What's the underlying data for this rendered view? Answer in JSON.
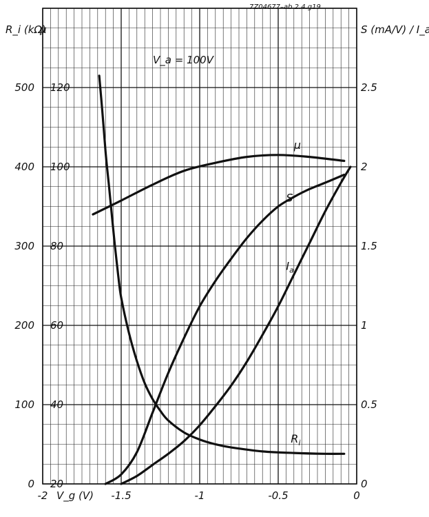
{
  "chart_data": {
    "type": "line",
    "catalog_ref": "7Z04677–ab 2.4.g19",
    "annotation": "V_a = 100V",
    "x": {
      "label": "V_g (V)",
      "range": [
        -2,
        0
      ],
      "ticks": [
        -2,
        -1.5,
        -1,
        -0.5,
        0
      ],
      "tick_labels": [
        "-2",
        "-1.5",
        "-1",
        "-0.5",
        "0"
      ]
    },
    "y_left_outer": {
      "label": "R_i (kΩ)",
      "range": [
        0,
        600
      ],
      "tick_labels": [
        "0",
        "100",
        "200",
        "300",
        "400",
        "500"
      ]
    },
    "y_left_inner": {
      "label": "μ",
      "range": [
        20,
        140
      ],
      "tick_labels": [
        "20",
        "40",
        "60",
        "80",
        "100",
        "120"
      ]
    },
    "y_right": {
      "label": "S (mA/V) / I_a (mA)",
      "range": [
        0,
        3
      ],
      "tick_labels": [
        "0",
        "0.5",
        "1",
        "1.5",
        "2",
        "2.5"
      ]
    },
    "grid": true,
    "series": [
      {
        "name": "μ",
        "axis": "y_left_inner",
        "x": [
          -1.68,
          -1.5,
          -1.3,
          -1.1,
          -0.9,
          -0.7,
          -0.5,
          -0.3,
          -0.08
        ],
        "y": [
          88,
          91.5,
          95.5,
          99,
          101,
          102.5,
          103,
          102.5,
          101.5
        ]
      },
      {
        "name": "S",
        "axis": "y_right",
        "x": [
          -1.6,
          -1.5,
          -1.4,
          -1.3,
          -1.2,
          -1.1,
          -1.0,
          -0.9,
          -0.8,
          -0.7,
          -0.6,
          -0.5,
          -0.4,
          -0.3,
          -0.2,
          -0.08
        ],
        "y": [
          0,
          0.06,
          0.2,
          0.45,
          0.7,
          0.92,
          1.12,
          1.28,
          1.42,
          1.55,
          1.66,
          1.75,
          1.81,
          1.86,
          1.9,
          1.95
        ]
      },
      {
        "name": "I_a",
        "axis": "y_right",
        "x": [
          -1.5,
          -1.4,
          -1.3,
          -1.2,
          -1.1,
          -1.0,
          -0.9,
          -0.8,
          -0.7,
          -0.6,
          -0.5,
          -0.4,
          -0.3,
          -0.2,
          -0.1,
          -0.04
        ],
        "y": [
          0,
          0.05,
          0.12,
          0.19,
          0.27,
          0.37,
          0.49,
          0.62,
          0.77,
          0.94,
          1.12,
          1.32,
          1.52,
          1.72,
          1.9,
          2.0
        ]
      },
      {
        "name": "R_i",
        "axis": "y_left_outer",
        "x": [
          -1.64,
          -1.62,
          -1.6,
          -1.58,
          -1.56,
          -1.54,
          -1.52,
          -1.5,
          -1.45,
          -1.4,
          -1.35,
          -1.3,
          -1.25,
          -1.2,
          -1.1,
          -1.0,
          -0.9,
          -0.8,
          -0.6,
          -0.4,
          -0.2,
          -0.08
        ],
        "y": [
          515,
          470,
          420,
          380,
          340,
          300,
          265,
          235,
          190,
          155,
          127,
          107,
          92,
          80,
          65,
          56,
          50,
          46,
          41,
          39,
          38,
          38
        ]
      }
    ]
  }
}
